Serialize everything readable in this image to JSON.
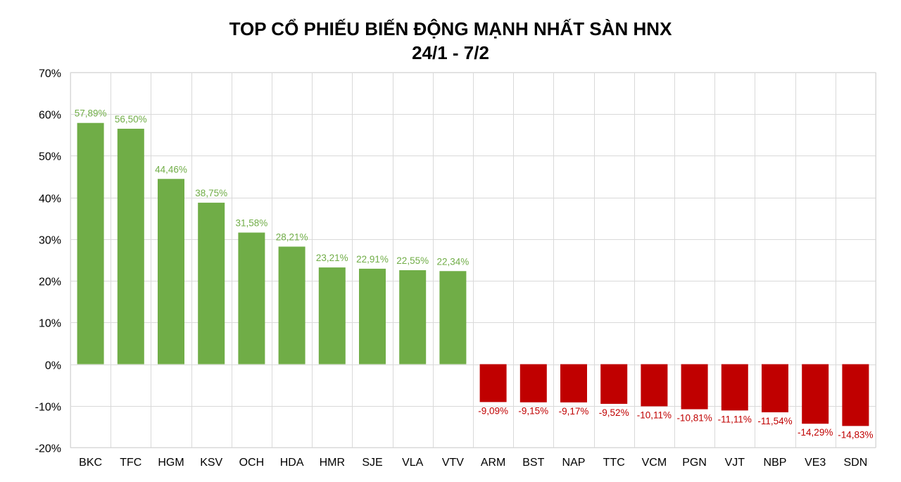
{
  "chart_data": {
    "type": "bar",
    "title": "TOP CỔ PHIẾU BIẾN ĐỘNG MẠNH NHẤT SÀN HNX",
    "subtitle": "24/1 - 7/2",
    "xlabel": "",
    "ylabel": "",
    "ylim": [
      -20,
      70
    ],
    "y_ticks": [
      70,
      60,
      50,
      40,
      30,
      20,
      10,
      0,
      -10,
      -20
    ],
    "y_tick_labels": [
      "70%",
      "60%",
      "50%",
      "40%",
      "30%",
      "20%",
      "10%",
      "0%",
      "-10%",
      "-20%"
    ],
    "grid": true,
    "legend": "none",
    "categories": [
      "BKC",
      "TFC",
      "HGM",
      "KSV",
      "OCH",
      "HDA",
      "HMR",
      "SJE",
      "VLA",
      "VTV",
      "ARM",
      "BST",
      "NAP",
      "TTC",
      "VCM",
      "PGN",
      "VJT",
      "NBP",
      "VE3",
      "SDN"
    ],
    "values": [
      57.89,
      56.5,
      44.46,
      38.75,
      31.58,
      28.21,
      23.21,
      22.91,
      22.55,
      22.34,
      -9.09,
      -9.15,
      -9.17,
      -9.52,
      -10.11,
      -10.81,
      -11.11,
      -11.54,
      -14.29,
      -14.83
    ],
    "data_labels": [
      "57,89%",
      "56,50%",
      "44,46%",
      "38,75%",
      "31,58%",
      "28,21%",
      "23,21%",
      "22,91%",
      "22,55%",
      "22,34%",
      "-9,09%",
      "-9,15%",
      "-9,17%",
      "-9,52%",
      "-10,11%",
      "-10,81%",
      "-11,11%",
      "-11,54%",
      "-14,29%",
      "-14,83%"
    ],
    "colors": {
      "positive": "#70ad47",
      "negative": "#c00000",
      "grid": "#d9d9d9",
      "axis_text": "#000000"
    }
  }
}
